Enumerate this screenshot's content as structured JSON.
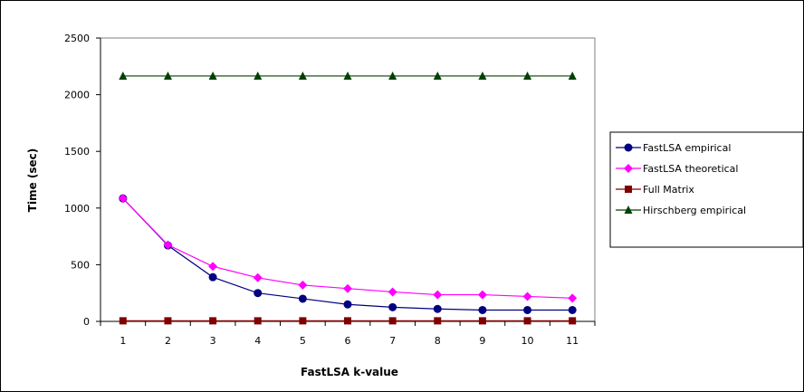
{
  "chart_data": {
    "type": "line",
    "title": "",
    "xlabel": "FastLSA k-value",
    "ylabel": "Time (sec)",
    "x": [
      1,
      2,
      3,
      4,
      5,
      6,
      7,
      8,
      9,
      10,
      11
    ],
    "ylim": [
      0,
      2500
    ],
    "yticks": [
      0,
      500,
      1000,
      1500,
      2000,
      2500
    ],
    "grid": true,
    "legend_position": "right",
    "series": [
      {
        "name": "FastLSA empirical",
        "color": "#000080",
        "marker": "circle",
        "values": [
          1085,
          670,
          390,
          250,
          200,
          150,
          125,
          110,
          100,
          100,
          100
        ]
      },
      {
        "name": "FastLSA theoretical",
        "color": "#FF00FF",
        "marker": "diamond",
        "values": [
          1085,
          675,
          485,
          385,
          320,
          290,
          260,
          235,
          235,
          220,
          205
        ]
      },
      {
        "name": "Full Matrix",
        "color": "#800000",
        "marker": "square",
        "values": [
          5,
          5,
          5,
          5,
          5,
          5,
          5,
          5,
          5,
          5,
          5
        ]
      },
      {
        "name": "Hirschberg empirical",
        "color": "#004000",
        "marker": "triangle",
        "values": [
          2165,
          2165,
          2165,
          2165,
          2165,
          2165,
          2165,
          2165,
          2165,
          2165,
          2165
        ]
      }
    ]
  }
}
